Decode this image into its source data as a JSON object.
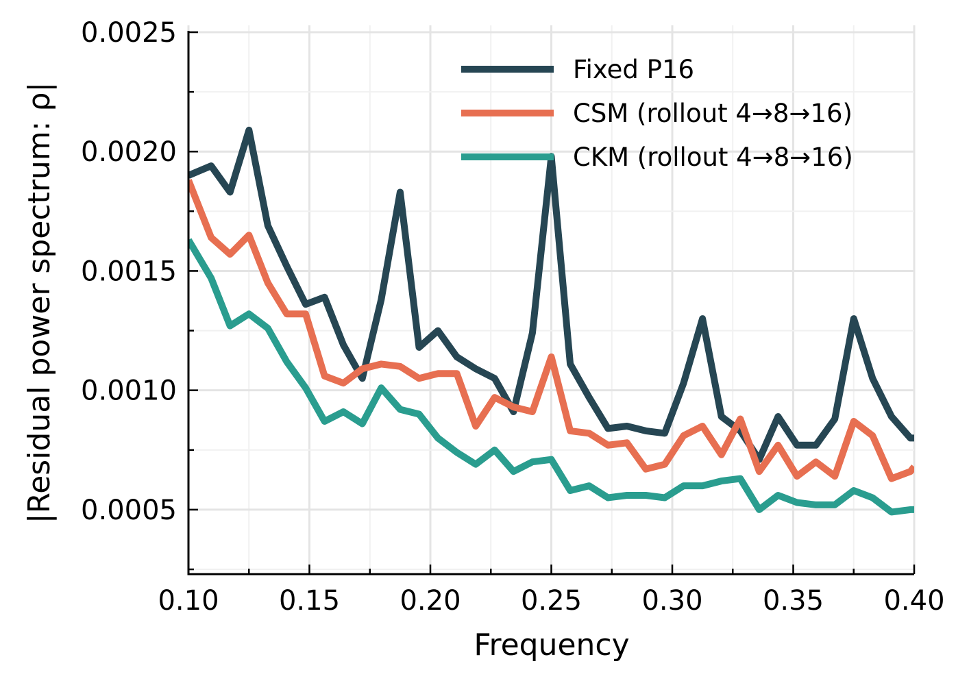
{
  "chart_data": {
    "type": "line",
    "title": "",
    "xlabel": "Frequency",
    "ylabel": "|Residual power spectrum: ρ|",
    "xlim": [
      0.1,
      0.4
    ],
    "ylim": [
      0.00023,
      0.0025
    ],
    "grid": true,
    "legend_position": "top-right",
    "x_ticks": [
      0.1,
      0.15,
      0.2,
      0.25,
      0.3,
      0.35,
      0.4
    ],
    "x_tick_labels": [
      "0.10",
      "0.15",
      "0.20",
      "0.25",
      "0.30",
      "0.35",
      "0.40"
    ],
    "y_ticks": [
      0.0005,
      0.001,
      0.0015,
      0.002,
      0.0025
    ],
    "y_tick_labels": [
      "0.0005",
      "0.0010",
      "0.0015",
      "0.0020",
      "0.0025"
    ],
    "x": [
      0.1,
      0.109375,
      0.1171875,
      0.125,
      0.1328125,
      0.140625,
      0.1484375,
      0.15625,
      0.1640625,
      0.171875,
      0.1796875,
      0.1875,
      0.1953125,
      0.203125,
      0.2109375,
      0.21875,
      0.2265625,
      0.234375,
      0.2421875,
      0.25,
      0.2578125,
      0.265625,
      0.2734375,
      0.28125,
      0.2890625,
      0.296875,
      0.3046875,
      0.3125,
      0.3203125,
      0.328125,
      0.3359375,
      0.34375,
      0.3515625,
      0.359375,
      0.3671875,
      0.375,
      0.3828125,
      0.390625,
      0.3984375,
      0.4
    ],
    "series": [
      {
        "name": "Fixed P16",
        "color": "#264653",
        "values": [
          0.0019,
          0.00194,
          0.00183,
          0.00209,
          0.00169,
          0.00152,
          0.00136,
          0.00139,
          0.00119,
          0.00105,
          0.00138,
          0.00183,
          0.00118,
          0.00125,
          0.00114,
          0.00109,
          0.00105,
          0.00091,
          0.00124,
          0.00198,
          0.00111,
          0.00097,
          0.00084,
          0.00085,
          0.00083,
          0.00082,
          0.00103,
          0.0013,
          0.00089,
          0.00083,
          0.00071,
          0.00089,
          0.00077,
          0.00077,
          0.00088,
          0.0013,
          0.00105,
          0.00089,
          0.0008,
          0.0008
        ]
      },
      {
        "name": "CSM (rollout 4→8→16)",
        "color": "#e76f51",
        "values": [
          0.00188,
          0.00164,
          0.00157,
          0.00165,
          0.00145,
          0.00132,
          0.00132,
          0.00106,
          0.00103,
          0.00109,
          0.00111,
          0.0011,
          0.00105,
          0.00107,
          0.00107,
          0.00085,
          0.00097,
          0.00093,
          0.00091,
          0.00114,
          0.00083,
          0.00082,
          0.00077,
          0.00078,
          0.00067,
          0.00069,
          0.00081,
          0.00085,
          0.00073,
          0.00088,
          0.00066,
          0.00077,
          0.00064,
          0.0007,
          0.00064,
          0.00087,
          0.00081,
          0.00063,
          0.00066,
          0.00068
        ]
      },
      {
        "name": "CKM (rollout 4→8→16)",
        "color": "#2a9d8f",
        "values": [
          0.00163,
          0.00147,
          0.00127,
          0.00132,
          0.00126,
          0.00112,
          0.00101,
          0.00087,
          0.00091,
          0.00086,
          0.00101,
          0.00092,
          0.0009,
          0.0008,
          0.00074,
          0.00069,
          0.00075,
          0.00066,
          0.0007,
          0.00071,
          0.00058,
          0.0006,
          0.00055,
          0.00056,
          0.00056,
          0.00055,
          0.0006,
          0.0006,
          0.00062,
          0.00063,
          0.0005,
          0.00056,
          0.00053,
          0.00052,
          0.00052,
          0.00058,
          0.00055,
          0.00049,
          0.0005,
          0.0005
        ]
      }
    ]
  }
}
